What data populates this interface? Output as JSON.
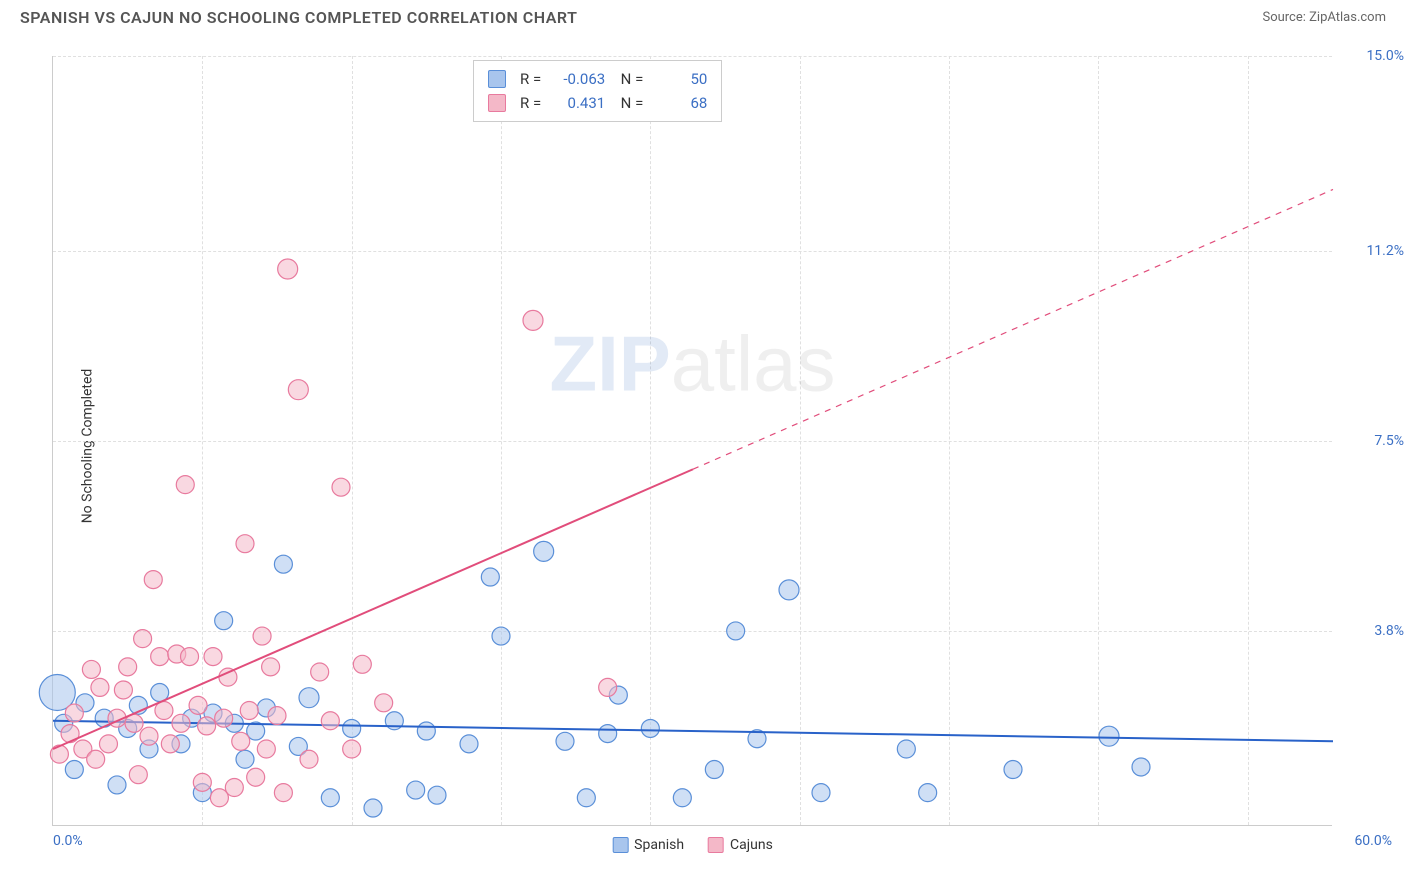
{
  "title": "SPANISH VS CAJUN NO SCHOOLING COMPLETED CORRELATION CHART",
  "source_label": "Source: ZipAtlas.com",
  "y_axis_label": "No Schooling Completed",
  "watermark": {
    "zip": "ZIP",
    "atlas": "atlas"
  },
  "chart": {
    "type": "scatter",
    "xlim": [
      0,
      60
    ],
    "ylim": [
      0,
      15
    ],
    "x_ticks": [
      0,
      60
    ],
    "x_tick_labels": [
      "0.0%",
      "60.0%"
    ],
    "y_ticks": [
      3.8,
      7.5,
      11.2,
      15.0
    ],
    "y_tick_labels": [
      "3.8%",
      "7.5%",
      "11.2%",
      "15.0%"
    ],
    "v_grid_positions": [
      7,
      14,
      21,
      28,
      35,
      42,
      49,
      56
    ],
    "background_color": "#ffffff",
    "grid_color": "#e0e0e0",
    "axis_label_color": "#3b6fc4",
    "marker_radius": 9,
    "marker_opacity": 0.55,
    "series": [
      {
        "name": "Spanish",
        "color_fill": "#a8c5ed",
        "color_stroke": "#5a8fd8",
        "r_value": "-0.063",
        "n_value": "50",
        "regression": {
          "y_at_x0": 2.05,
          "y_at_xmax": 1.65,
          "stroke": "#2962c9",
          "width": 2,
          "dash_from_x": null
        },
        "points": [
          [
            0.2,
            2.6,
            18
          ],
          [
            0.5,
            2.0,
            9
          ],
          [
            1.0,
            1.1,
            9
          ],
          [
            1.5,
            2.4,
            9
          ],
          [
            2.4,
            2.1,
            9
          ],
          [
            3.0,
            0.8,
            9
          ],
          [
            3.5,
            1.9,
            9
          ],
          [
            4.0,
            2.35,
            9
          ],
          [
            4.5,
            1.5,
            9
          ],
          [
            5.0,
            2.6,
            9
          ],
          [
            6.0,
            1.6,
            9
          ],
          [
            6.5,
            2.1,
            9
          ],
          [
            7.0,
            0.65,
            9
          ],
          [
            7.5,
            2.2,
            9
          ],
          [
            8.0,
            4.0,
            9
          ],
          [
            8.5,
            2.0,
            9
          ],
          [
            9.0,
            1.3,
            9
          ],
          [
            9.5,
            1.85,
            9
          ],
          [
            10.0,
            2.3,
            9
          ],
          [
            10.8,
            5.1,
            9
          ],
          [
            11.5,
            1.55,
            9
          ],
          [
            12.0,
            2.5,
            10
          ],
          [
            13.0,
            0.55,
            9
          ],
          [
            14.0,
            1.9,
            9
          ],
          [
            15.0,
            0.35,
            9
          ],
          [
            16.0,
            2.05,
            9
          ],
          [
            17.0,
            0.7,
            9
          ],
          [
            17.5,
            1.85,
            9
          ],
          [
            18.0,
            0.6,
            9
          ],
          [
            19.5,
            1.6,
            9
          ],
          [
            20.5,
            4.85,
            9
          ],
          [
            21.0,
            3.7,
            9
          ],
          [
            23.0,
            5.35,
            10
          ],
          [
            24.0,
            1.65,
            9
          ],
          [
            25.0,
            0.55,
            9
          ],
          [
            26.0,
            1.8,
            9
          ],
          [
            26.5,
            2.55,
            9
          ],
          [
            28.0,
            1.9,
            9
          ],
          [
            29.5,
            0.55,
            9
          ],
          [
            31.0,
            1.1,
            9
          ],
          [
            32.0,
            3.8,
            9
          ],
          [
            33.0,
            1.7,
            9
          ],
          [
            34.5,
            4.6,
            10
          ],
          [
            36.0,
            0.65,
            9
          ],
          [
            40.0,
            1.5,
            9
          ],
          [
            41.0,
            0.65,
            9
          ],
          [
            45.0,
            1.1,
            9
          ],
          [
            49.5,
            1.75,
            10
          ],
          [
            51.0,
            1.15,
            9
          ]
        ]
      },
      {
        "name": "Cajuns",
        "color_fill": "#f4b8c8",
        "color_stroke": "#e87a9e",
        "r_value": "0.431",
        "n_value": "68",
        "regression": {
          "y_at_x0": 1.5,
          "y_at_xmax": 12.4,
          "stroke": "#e14d7b",
          "width": 2,
          "dash_from_x": 30
        },
        "points": [
          [
            0.3,
            1.4,
            9
          ],
          [
            0.8,
            1.8,
            9
          ],
          [
            1.0,
            2.2,
            9
          ],
          [
            1.4,
            1.5,
            9
          ],
          [
            1.8,
            3.05,
            9
          ],
          [
            2.0,
            1.3,
            9
          ],
          [
            2.2,
            2.7,
            9
          ],
          [
            2.6,
            1.6,
            9
          ],
          [
            3.0,
            2.1,
            9
          ],
          [
            3.3,
            2.65,
            9
          ],
          [
            3.5,
            3.1,
            9
          ],
          [
            3.8,
            2.0,
            9
          ],
          [
            4.0,
            1.0,
            9
          ],
          [
            4.2,
            3.65,
            9
          ],
          [
            4.5,
            1.75,
            9
          ],
          [
            4.7,
            4.8,
            9
          ],
          [
            5.0,
            3.3,
            9
          ],
          [
            5.2,
            2.25,
            9
          ],
          [
            5.5,
            1.6,
            9
          ],
          [
            5.8,
            3.35,
            9
          ],
          [
            6.0,
            2.0,
            9
          ],
          [
            6.2,
            6.65,
            9
          ],
          [
            6.4,
            3.3,
            9
          ],
          [
            6.8,
            2.35,
            9
          ],
          [
            7.0,
            0.85,
            9
          ],
          [
            7.2,
            1.95,
            9
          ],
          [
            7.5,
            3.3,
            9
          ],
          [
            7.8,
            0.55,
            9
          ],
          [
            8.0,
            2.1,
            9
          ],
          [
            8.2,
            2.9,
            9
          ],
          [
            8.5,
            0.75,
            9
          ],
          [
            8.8,
            1.65,
            9
          ],
          [
            9.0,
            5.5,
            9
          ],
          [
            9.2,
            2.25,
            9
          ],
          [
            9.5,
            0.95,
            9
          ],
          [
            9.8,
            3.7,
            9
          ],
          [
            10.0,
            1.5,
            9
          ],
          [
            10.2,
            3.1,
            9
          ],
          [
            10.5,
            2.15,
            9
          ],
          [
            10.8,
            0.65,
            9
          ],
          [
            11.0,
            10.85,
            10
          ],
          [
            11.5,
            8.5,
            10
          ],
          [
            12.0,
            1.3,
            9
          ],
          [
            12.5,
            3.0,
            9
          ],
          [
            13.0,
            2.05,
            9
          ],
          [
            13.5,
            6.6,
            9
          ],
          [
            14.0,
            1.5,
            9
          ],
          [
            14.5,
            3.15,
            9
          ],
          [
            15.5,
            2.4,
            9
          ],
          [
            22.5,
            9.85,
            10
          ],
          [
            26.0,
            2.7,
            9
          ]
        ]
      }
    ]
  },
  "legend": {
    "items": [
      {
        "label": "Spanish",
        "swatch": "#a8c5ed"
      },
      {
        "label": "Cajuns",
        "swatch": "#f4b8c8"
      }
    ]
  }
}
